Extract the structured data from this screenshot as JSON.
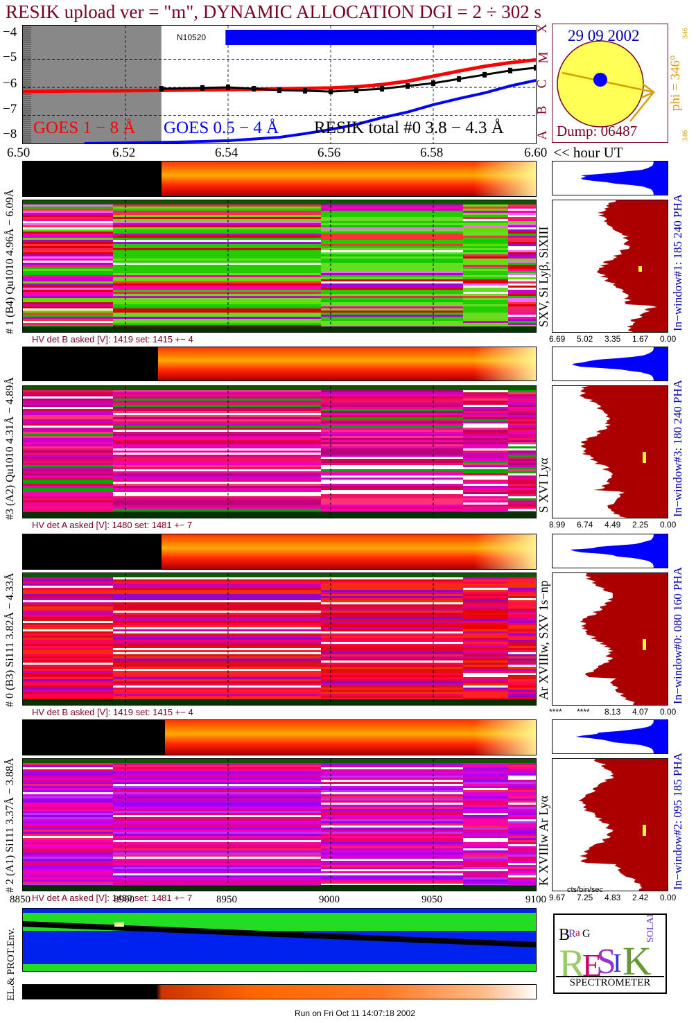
{
  "title": "RESIK upload ver = \"m\", DYNAMIC ALLOCATION  DGI =   2 ÷ 302 s",
  "colors": {
    "title": "#7a0020",
    "goes_long": "#ff0000",
    "goes_short": "#0000ff",
    "resik": "#000000",
    "sun": "#ffff55",
    "phi": "#d4a000",
    "label_blue": "#0000aa"
  },
  "lightcurve": {
    "type": "line",
    "x_unit_label": "<< hour UT",
    "x_ticks": [
      "6.50",
      "6.52",
      "6.54",
      "6.56",
      "6.58",
      "6.60"
    ],
    "y_ticks": [
      "−4",
      "−5",
      "−6",
      "−7",
      "−8"
    ],
    "xlim": [
      6.5,
      6.6
    ],
    "ylim": [
      -8.0,
      -3.8
    ],
    "flare_classes": [
      "A",
      "B",
      "C",
      "M",
      "X"
    ],
    "bar_label": "N10520",
    "legend": [
      "GOES 1 − 8 Å",
      "GOES 0.5 − 4 Å",
      "RESIK total #0  3.8 − 4.3 Å"
    ],
    "saa_until": 6.527,
    "series": [
      {
        "name": "GOES 1 − 8 Å",
        "x": [
          6.5,
          6.51,
          6.52,
          6.53,
          6.54,
          6.55,
          6.56,
          6.565,
          6.57,
          6.575,
          6.58,
          6.585,
          6.59,
          6.595,
          6.6
        ],
        "y": [
          -6.15,
          -6.13,
          -6.12,
          -6.1,
          -6.08,
          -6.05,
          -6.02,
          -5.98,
          -5.9,
          -5.78,
          -5.6,
          -5.42,
          -5.25,
          -5.12,
          -5.02
        ]
      },
      {
        "name": "GOES 0.5 − 4 Å",
        "x": [
          6.512,
          6.52,
          6.53,
          6.54,
          6.55,
          6.555,
          6.56,
          6.565,
          6.57,
          6.575,
          6.58,
          6.585,
          6.59,
          6.595,
          6.6
        ],
        "y": [
          -8.0,
          -7.98,
          -7.95,
          -7.9,
          -7.78,
          -7.65,
          -7.5,
          -7.32,
          -7.08,
          -6.88,
          -6.62,
          -6.4,
          -6.2,
          -5.95,
          -5.75
        ]
      },
      {
        "name": "RESIK total #0  3.8 − 4.3 Å",
        "x": [
          6.527,
          6.535,
          6.54,
          6.545,
          6.55,
          6.555,
          6.56,
          6.565,
          6.57,
          6.575,
          6.58,
          6.585,
          6.59,
          6.595,
          6.6
        ],
        "y": [
          -6.05,
          -6.02,
          -6.0,
          -6.05,
          -6.1,
          -6.12,
          -6.15,
          -6.1,
          -6.05,
          -5.95,
          -5.85,
          -5.7,
          -5.55,
          -5.4,
          -5.3
        ]
      }
    ]
  },
  "sun": {
    "date": "29 09 2002",
    "dump": "Dump: 06487",
    "phi": "phi = 346°",
    "phi_small": "346",
    "phi_small2": "346"
  },
  "channels": [
    {
      "label": "# 1 (B4) Qu1010 4.96Å − 6.09Å",
      "lines": "SXV, Si Lyβ, SiXIII",
      "hv": "HV det B asked [V]:  1419 set:  1415 +−   4",
      "window": "In−window#1:  185 240 PHA",
      "hist_ticks": [
        "6.69",
        "5.02",
        "3.35",
        "1.67",
        "0.00"
      ]
    },
    {
      "label": "#3 (A2) Qu1010  4.31Å − 4.89Å",
      "lines": "S XVI Lyα",
      "hv": "HV det A asked [V]:  1480 set:  1481 +−   7",
      "window": "In−window#3:  180 240 PHA",
      "hist_ticks": [
        "8.99",
        "6.74",
        "4.49",
        "2.25",
        "0.00"
      ]
    },
    {
      "label": "# 0 (B3) Si111  3.82Å − 4.33Å",
      "lines": "Ar XVIIIw,  SXV  1s−np",
      "hv": "HV det B asked [V]:  1419 set:  1415 +−   4",
      "window": "In−window#0:  080 160 PHA",
      "hist_ticks": [
        "****",
        "****",
        "8.13",
        "4.07",
        "0.00"
      ]
    },
    {
      "label": "# 2 (A1) Si111  3.37Å − 3.88Å",
      "lines": "K XVIIIw  Ar Lyα",
      "hv": "HV det A asked [V]:  1480 set:  1481 +−   7",
      "window": "In−window#2:  095 185 PHA",
      "hist_ticks": [
        "9.67",
        "7.25",
        "4.83",
        "2.42",
        "0.00"
      ]
    }
  ],
  "hist_unit": "cts/bin/sec",
  "bottom_axis": {
    "ticks": [
      "8850",
      "8900",
      "8950",
      "9000",
      "9050",
      "9100"
    ],
    "label": "EL.& PROT.Env."
  },
  "logo": {
    "letters": "BRaG RESIK SOLAR",
    "caption": "SPECTROMETER"
  },
  "run_on": "Run on Fri Oct 11 14:07:18 2002"
}
